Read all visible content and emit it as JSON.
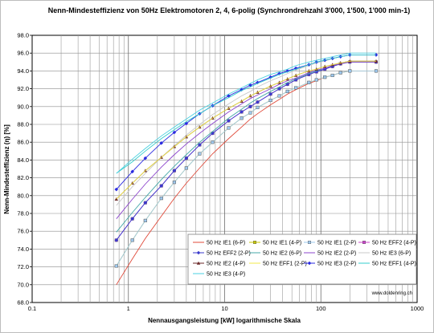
{
  "chart_data": {
    "type": "line",
    "title": "Nenn-Mindesteffizienz von 50Hz Elektromotoren 2, 4, 6-polig (Synchrondrehzahl 3'000, 1'500, 1'000 min-1)",
    "xlabel": "Nennausgangsleistung [kW] logarithmische Skala",
    "ylabel": "Nenn-Mindesteffizienz (η) [%]",
    "x_scale": "log",
    "xlim": [
      0.1,
      1000
    ],
    "ylim": [
      68.0,
      98.0
    ],
    "x_tick_labels": [
      "0.1",
      "1",
      "10",
      "100",
      "1000"
    ],
    "y_tick_labels": [
      "68.0",
      "70.0",
      "72.0",
      "74.0",
      "76.0",
      "78.0",
      "80.0",
      "82.0",
      "84.0",
      "86.0",
      "88.0",
      "90.0",
      "92.0",
      "94.0",
      "96.0",
      "98.0"
    ],
    "grid": true,
    "watermark": "www.doldenring.ch",
    "x": [
      0.75,
      1.1,
      1.5,
      2.2,
      3,
      4,
      5.5,
      7.5,
      11,
      15,
      18.5,
      22,
      30,
      37,
      45,
      55,
      75,
      90,
      110,
      132,
      160,
      200,
      375
    ],
    "series": [
      {
        "name": "50 Hz IE1 (6-P)",
        "color": "#e04a3a",
        "marker": "none",
        "values": [
          70.0,
          72.9,
          75.2,
          77.7,
          79.7,
          81.4,
          83.1,
          84.7,
          86.4,
          87.7,
          88.6,
          89.2,
          90.2,
          90.8,
          91.4,
          91.9,
          92.6,
          92.9,
          93.3,
          93.5,
          93.8,
          94.0,
          94.0
        ]
      },
      {
        "name": "50 Hz IE1 (4-P)",
        "color": "#c8c800",
        "marker": "square",
        "values": [
          72.1,
          75.0,
          77.2,
          79.7,
          81.5,
          83.1,
          84.7,
          86.0,
          87.6,
          88.7,
          89.3,
          89.9,
          90.7,
          91.2,
          91.7,
          92.1,
          92.7,
          93.0,
          93.3,
          93.5,
          93.8,
          94.0,
          94.0
        ]
      },
      {
        "name": "50 Hz IE1 (2-P)",
        "color": "#9ec8ee",
        "marker": "square",
        "values": [
          72.1,
          75.0,
          77.2,
          79.7,
          81.5,
          83.1,
          84.7,
          86.0,
          87.6,
          88.7,
          89.3,
          89.9,
          90.7,
          91.2,
          91.7,
          92.1,
          92.7,
          93.0,
          93.3,
          93.5,
          93.8,
          94.0,
          94.0
        ]
      },
      {
        "name": "50 Hz EFF2 (4-P)",
        "color": "#cc44cc",
        "marker": "square",
        "values": [
          75.0,
          77.4,
          79.2,
          81.1,
          82.8,
          84.2,
          85.7,
          87.0,
          88.4,
          89.4,
          90.0,
          90.5,
          91.4,
          92.0,
          92.5,
          93.0,
          93.6,
          93.9,
          94.2,
          94.5,
          94.8,
          95.0,
          95.0
        ]
      },
      {
        "name": "50 Hz EFF2 (2-P)",
        "color": "#3a3acc",
        "marker": "diamond",
        "values": [
          75.0,
          77.4,
          79.2,
          81.1,
          82.8,
          84.2,
          85.7,
          87.0,
          88.4,
          89.4,
          90.0,
          90.5,
          91.4,
          92.0,
          92.5,
          93.0,
          93.6,
          93.9,
          94.2,
          94.5,
          94.8,
          95.0,
          95.0
        ]
      },
      {
        "name": "50 Hz IE2 (6-P)",
        "color": "#44a8a8",
        "marker": "none",
        "values": [
          75.9,
          78.1,
          79.8,
          81.8,
          83.3,
          84.6,
          86.0,
          87.2,
          88.7,
          89.7,
          90.4,
          90.9,
          91.7,
          92.2,
          92.7,
          93.1,
          93.7,
          94.0,
          94.3,
          94.6,
          94.8,
          95.0,
          95.0
        ]
      },
      {
        "name": "50 Hz IE2 (2-P)",
        "color": "#8c44cc",
        "marker": "none",
        "values": [
          77.4,
          79.6,
          81.3,
          83.2,
          84.6,
          85.8,
          87.0,
          88.1,
          89.4,
          90.3,
          90.9,
          91.3,
          92.0,
          92.5,
          92.9,
          93.2,
          93.8,
          94.1,
          94.3,
          94.6,
          94.8,
          95.0,
          95.0
        ]
      },
      {
        "name": "50 Hz IE3 (6-P)",
        "color": "#c8c8c8",
        "marker": "none",
        "values": [
          78.9,
          81.0,
          82.5,
          84.3,
          85.6,
          86.8,
          88.0,
          89.1,
          90.3,
          91.2,
          91.7,
          92.2,
          92.9,
          93.3,
          93.7,
          94.1,
          94.6,
          94.9,
          95.1,
          95.4,
          95.6,
          95.8,
          95.8
        ]
      },
      {
        "name": "50 Hz IE2 (4-P)",
        "color": "#6b2a2a",
        "marker": "triangle",
        "values": [
          79.6,
          81.4,
          82.8,
          84.3,
          85.5,
          86.6,
          87.7,
          88.7,
          89.8,
          90.6,
          91.2,
          91.6,
          92.3,
          92.7,
          93.1,
          93.5,
          94.0,
          94.2,
          94.5,
          94.7,
          94.9,
          95.1,
          95.1
        ]
      },
      {
        "name": "50 Hz EFF1 (2-P)",
        "color": "#f0e84a",
        "marker": "none",
        "values": [
          79.6,
          81.4,
          82.8,
          84.3,
          85.5,
          86.6,
          87.7,
          88.7,
          89.8,
          90.6,
          91.2,
          91.6,
          92.3,
          92.7,
          93.1,
          93.5,
          94.0,
          94.2,
          94.5,
          94.7,
          94.9,
          95.1,
          95.1
        ]
      },
      {
        "name": "50 Hz IE3 (2-P)",
        "color": "#2a2ae0",
        "marker": "diamond",
        "values": [
          80.7,
          82.7,
          84.2,
          85.9,
          87.1,
          88.1,
          89.2,
          90.1,
          91.2,
          91.9,
          92.4,
          92.7,
          93.3,
          93.7,
          94.0,
          94.3,
          94.7,
          95.0,
          95.2,
          95.4,
          95.6,
          95.8,
          95.8
        ]
      },
      {
        "name": "50 Hz EFF1 (4-P)",
        "color": "#33cccc",
        "marker": "none",
        "values": [
          82.5,
          83.8,
          85.0,
          86.4,
          87.4,
          88.3,
          89.2,
          90.1,
          91.0,
          91.8,
          92.2,
          92.6,
          93.2,
          93.6,
          93.9,
          94.2,
          94.7,
          95.0,
          95.2,
          95.4,
          95.6,
          95.8,
          95.8
        ]
      },
      {
        "name": "50 Hz IE3 (4-P)",
        "color": "#4ad0e0",
        "marker": "none",
        "values": [
          82.5,
          84.1,
          85.3,
          86.7,
          87.7,
          88.6,
          89.6,
          90.4,
          91.4,
          92.1,
          92.6,
          93.0,
          93.6,
          93.9,
          94.2,
          94.6,
          95.0,
          95.2,
          95.4,
          95.6,
          95.8,
          96.0,
          96.0
        ]
      }
    ]
  }
}
